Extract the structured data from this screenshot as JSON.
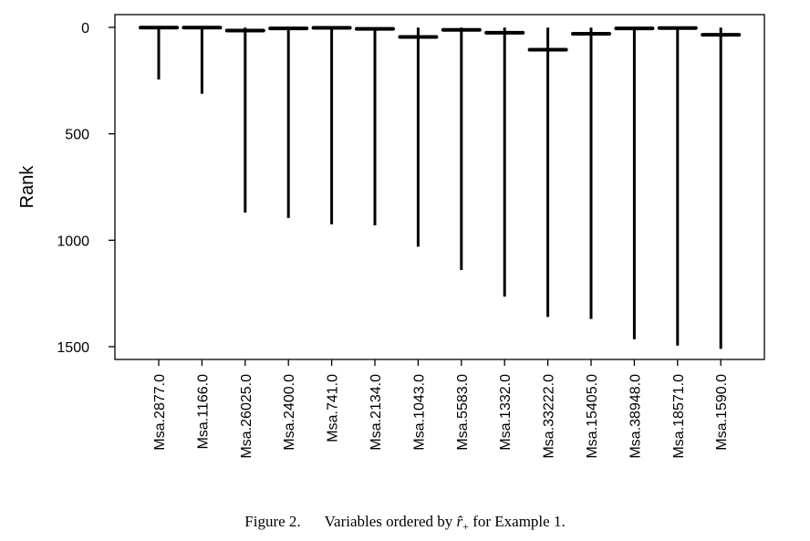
{
  "chart_data": {
    "type": "box",
    "categories": [
      "Msa.2877.0",
      "Msa.1166.0",
      "Msa.26025.0",
      "Msa.2400.0",
      "Msa.741.0",
      "Msa.2134.0",
      "Msa.1043.0",
      "Msa.5583.0",
      "Msa.1332.0",
      "Msa.33222.0",
      "Msa.15405.0",
      "Msa.38948.0",
      "Msa.18571.0",
      "Msa.1590.0"
    ],
    "median": [
      1,
      1,
      15,
      5,
      2,
      7,
      45,
      12,
      25,
      105,
      30,
      5,
      3,
      35
    ],
    "min": [
      1,
      1,
      1,
      1,
      1,
      1,
      1,
      1,
      1,
      1,
      1,
      1,
      1,
      1
    ],
    "max": [
      245,
      312,
      870,
      895,
      925,
      930,
      1030,
      1140,
      1265,
      1360,
      1370,
      1465,
      1495,
      1510
    ],
    "ylabel": "Rank",
    "yticks": [
      0,
      500,
      1000,
      1500
    ],
    "ylim": [
      1560,
      -60
    ],
    "y_reversed": true,
    "grid": false
  },
  "caption": {
    "label": "Figure 2.",
    "text_before": "Variables ordered by",
    "symbol": "r̂",
    "symbol_sub": "+",
    "text_after": "for Example 1."
  }
}
